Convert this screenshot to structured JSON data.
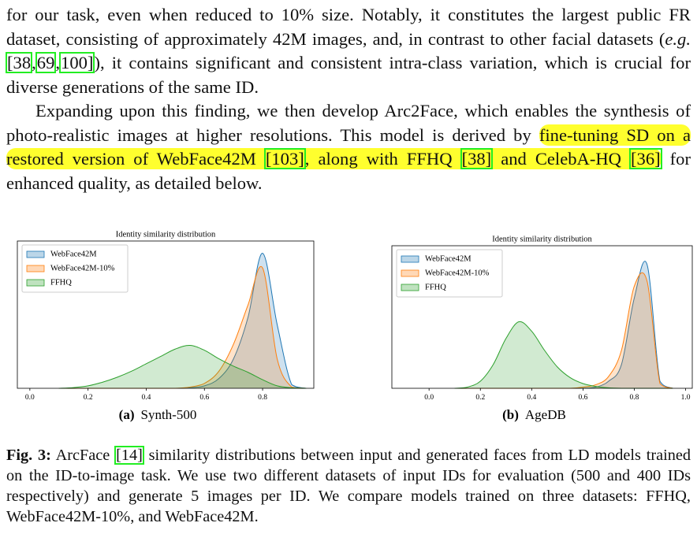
{
  "text": {
    "paragraphs": [
      [
        "for our task, even when reduced to 10% size. Notably, it constitutes the largest public FR dataset, consisting of approximately 42M images, and, in contrast to other facial datasets (",
        {
          "em": "e.g."
        },
        " ",
        {
          "cite": "[38"
        },
        ",",
        {
          "cite": "69"
        },
        ",",
        {
          "cite": "100]"
        },
        "), it contains significant and consistent intra-class variation, which is crucial for diverse generations of the same ID."
      ],
      [
        "Expanding upon this finding, we then develop Arc2Face, which enables the synthesis of photo-realistic images at higher resolutions. This model is derived by ",
        {
          "mark": [
            "fine-tuning SD on a restored version of WebFace42M ",
            {
              "cite": "[103]"
            },
            ", along with FFHQ ",
            {
              "cite": "[38]"
            },
            " and CelebA-HQ ",
            {
              "cite": "[36]"
            }
          ]
        },
        " for enhanced quality, as detailed below."
      ]
    ]
  },
  "chart_data": [
    {
      "type": "area",
      "title": "Identity similarity distribution",
      "sublabel": "(a)",
      "subcaption": "Synth-500",
      "x": [
        0.1,
        0.15,
        0.2,
        0.25,
        0.3,
        0.35,
        0.4,
        0.45,
        0.5,
        0.55,
        0.6,
        0.65,
        0.7,
        0.75,
        0.8,
        0.85,
        0.9,
        0.95
      ],
      "series": [
        {
          "name": "WebFace42M",
          "color": "#1f77b4",
          "values": [
            0,
            0,
            0,
            0,
            0,
            0,
            0,
            0,
            0,
            0.02,
            0.1,
            0.4,
            1.2,
            2.9,
            5.5,
            2.6,
            0.15,
            0
          ]
        },
        {
          "name": "WebFace42M-10%",
          "color": "#ff7f0e",
          "values": [
            0,
            0,
            0,
            0,
            0,
            0,
            0,
            0,
            0,
            0.05,
            0.2,
            0.7,
            1.8,
            3.4,
            4.9,
            1.2,
            0.05,
            0
          ]
        },
        {
          "name": "FFHQ",
          "color": "#2ca02c",
          "values": [
            0,
            0.03,
            0.1,
            0.25,
            0.45,
            0.7,
            1.0,
            1.3,
            1.6,
            1.75,
            1.55,
            1.2,
            0.9,
            0.65,
            0.35,
            0.1,
            0.02,
            0
          ]
        }
      ],
      "xlim": [
        -0.043,
        0.976
      ],
      "ylim": [
        0,
        6
      ],
      "xticks": [
        {
          "value": 0,
          "label": "0.0"
        },
        0.2,
        0.4,
        0.6,
        0.8
      ],
      "legend": "upper-left"
    },
    {
      "type": "area",
      "title": "Identity similarity distribution",
      "sublabel": "(b)",
      "subcaption": "AgeDB",
      "x": [
        0.1,
        0.15,
        0.2,
        0.25,
        0.3,
        0.35,
        0.4,
        0.45,
        0.5,
        0.55,
        0.6,
        0.65,
        0.7,
        0.75,
        0.8,
        0.85,
        0.9,
        0.95
      ],
      "series": [
        {
          "name": "WebFace42M",
          "color": "#1f77b4",
          "values": [
            0,
            0,
            0,
            0,
            0,
            0,
            0,
            0,
            0,
            0,
            0,
            0.05,
            0.3,
            1.0,
            3.8,
            5.2,
            0.3,
            0
          ]
        },
        {
          "name": "WebFace42M-10%",
          "color": "#ff7f0e",
          "values": [
            0,
            0,
            0,
            0,
            0,
            0,
            0,
            0,
            0,
            0,
            0.05,
            0.15,
            0.5,
            1.6,
            4.3,
            4.5,
            0.2,
            0
          ]
        },
        {
          "name": "FFHQ",
          "color": "#2ca02c",
          "values": [
            0,
            0.05,
            0.3,
            1.0,
            2.1,
            2.8,
            2.4,
            1.6,
            0.9,
            0.45,
            0.2,
            0.08,
            0.02,
            0,
            0,
            0,
            0,
            0
          ]
        }
      ],
      "xlim": [
        -0.145,
        1.026
      ],
      "ylim": [
        0,
        6
      ],
      "xticks": [
        {
          "value": 0,
          "label": "0.0"
        },
        0.2,
        0.4,
        0.6,
        0.8,
        {
          "value": 1,
          "label": "1.0"
        }
      ],
      "legend": "upper-left"
    }
  ],
  "caption": {
    "label": "Fig. 3:",
    "pieces": [
      " ArcFace ",
      {
        "cite": "[14]"
      },
      " similarity distributions between input and generated faces from LD models trained on the ID-to-image task. We use two different datasets of input IDs for evaluation (500 and 400 IDs respectively) and generate 5 images per ID. We compare models trained on three datasets: FFHQ, WebFace42M-10%, and WebFace42M."
    ]
  }
}
